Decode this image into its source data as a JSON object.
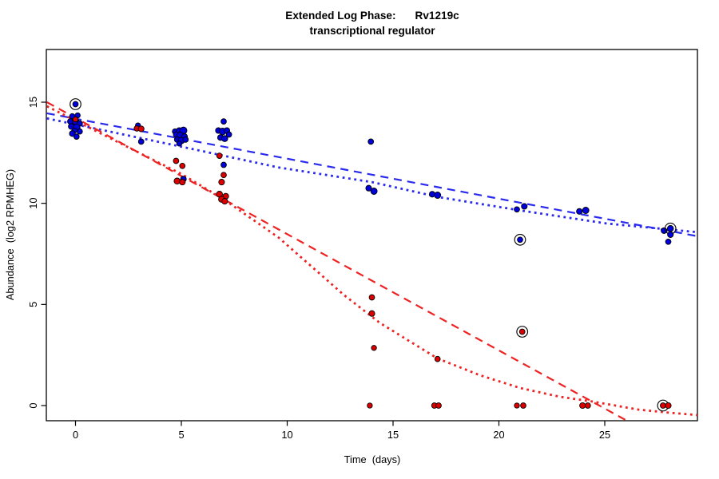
{
  "figure": {
    "title_line1_label": "Extended Log Phase:",
    "title_line1_gene": "Rv1219c",
    "title_line2": "transcriptional regulator",
    "x_axis_label": "Time  (days)",
    "y_axis_label": "Abundance  (log2 RPMHEG)"
  },
  "chart_data": {
    "type": "scatter",
    "title": "Extended Log Phase: Rv1219c transcriptional regulator",
    "xlabel": "Time (days)",
    "ylabel": "Abundance (log2 RPMHEG)",
    "xlim": [
      -1.35,
      29.4
    ],
    "ylim": [
      -0.78,
      17.6
    ],
    "x_ticks": [
      0,
      5,
      10,
      15,
      20,
      25
    ],
    "y_ticks": [
      0,
      5,
      10,
      15
    ],
    "grid": false,
    "legend": "none",
    "colors": {
      "blue_points": "#0000DD",
      "red_points": "#DD0000",
      "blue_line": "#2A2AEE",
      "red_line": "#EE2222",
      "point_edge": "#000000",
      "circle_marker": "#111111"
    },
    "point_format": "[day, value, radius_px, circled_flag]",
    "series": [
      {
        "name": "blue-condition",
        "color_key": "blue_points",
        "points": [
          [
            0.0,
            14.9,
            3.4,
            1
          ],
          [
            -0.15,
            14.3,
            3.4,
            0
          ],
          [
            0.1,
            14.35,
            3.2,
            0
          ],
          [
            -0.25,
            14.05,
            3.4,
            0
          ],
          [
            0.0,
            14.05,
            4.2,
            0
          ],
          [
            0.2,
            13.95,
            3.4,
            0
          ],
          [
            -0.2,
            13.8,
            3.6,
            0
          ],
          [
            0.05,
            13.75,
            4.4,
            0
          ],
          [
            -0.05,
            13.6,
            3.2,
            0
          ],
          [
            0.2,
            13.55,
            3.4,
            0
          ],
          [
            -0.15,
            13.45,
            3.6,
            0
          ],
          [
            0.05,
            13.3,
            3.4,
            0
          ],
          [
            2.95,
            13.85,
            3.2,
            0
          ],
          [
            3.1,
            13.05,
            3.4,
            0
          ],
          [
            4.7,
            13.55,
            3.4,
            0
          ],
          [
            4.9,
            13.6,
            3.6,
            0
          ],
          [
            5.1,
            13.6,
            4.4,
            0
          ],
          [
            4.75,
            13.4,
            3.4,
            0
          ],
          [
            4.95,
            13.35,
            4.2,
            0
          ],
          [
            5.15,
            13.3,
            3.6,
            0
          ],
          [
            4.8,
            13.15,
            3.4,
            0
          ],
          [
            5.0,
            13.1,
            4.0,
            0
          ],
          [
            5.2,
            13.15,
            3.4,
            0
          ],
          [
            4.9,
            12.95,
            3.2,
            0
          ],
          [
            5.1,
            11.2,
            3.6,
            0
          ],
          [
            7.0,
            14.05,
            3.4,
            0
          ],
          [
            6.75,
            13.6,
            3.6,
            0
          ],
          [
            6.95,
            13.55,
            4.2,
            0
          ],
          [
            7.15,
            13.6,
            3.6,
            0
          ],
          [
            7.25,
            13.4,
            3.4,
            0
          ],
          [
            6.85,
            13.25,
            3.6,
            0
          ],
          [
            7.05,
            13.2,
            3.8,
            0
          ],
          [
            7.0,
            11.9,
            3.4,
            0
          ],
          [
            13.95,
            13.05,
            3.4,
            0
          ],
          [
            13.85,
            10.75,
            3.6,
            0
          ],
          [
            14.1,
            10.6,
            4.0,
            0
          ],
          [
            16.85,
            10.45,
            3.6,
            0
          ],
          [
            17.1,
            10.4,
            4.0,
            0
          ],
          [
            20.85,
            9.7,
            3.4,
            0
          ],
          [
            21.2,
            9.85,
            3.6,
            0
          ],
          [
            21.0,
            8.2,
            3.4,
            1
          ],
          [
            23.8,
            9.6,
            3.6,
            0
          ],
          [
            24.1,
            9.65,
            4.0,
            0
          ],
          [
            27.8,
            8.65,
            3.6,
            0
          ],
          [
            28.1,
            8.75,
            3.8,
            1
          ],
          [
            28.1,
            8.45,
            3.6,
            0
          ],
          [
            28.0,
            8.1,
            3.4,
            0
          ]
        ]
      },
      {
        "name": "red-condition",
        "color_key": "red_points",
        "points": [
          [
            0.0,
            14.15,
            3.2,
            0
          ],
          [
            2.9,
            13.7,
            3.4,
            0
          ],
          [
            3.1,
            13.68,
            3.6,
            0
          ],
          [
            4.75,
            12.1,
            3.4,
            0
          ],
          [
            5.05,
            11.85,
            3.4,
            0
          ],
          [
            4.8,
            11.1,
            3.8,
            0
          ],
          [
            5.05,
            11.05,
            3.6,
            0
          ],
          [
            6.8,
            12.35,
            3.4,
            0
          ],
          [
            7.0,
            11.4,
            3.4,
            0
          ],
          [
            6.9,
            11.05,
            3.6,
            0
          ],
          [
            6.8,
            10.45,
            3.8,
            0
          ],
          [
            7.1,
            10.35,
            3.6,
            0
          ],
          [
            6.9,
            10.2,
            3.8,
            0
          ],
          [
            7.05,
            10.1,
            3.6,
            0
          ],
          [
            14.0,
            5.35,
            3.4,
            0
          ],
          [
            14.0,
            4.55,
            3.6,
            0
          ],
          [
            14.1,
            2.85,
            3.2,
            0
          ],
          [
            13.9,
            0.0,
            3.2,
            0
          ],
          [
            17.1,
            2.3,
            3.4,
            0
          ],
          [
            16.95,
            0.0,
            3.4,
            0
          ],
          [
            17.15,
            0.0,
            3.4,
            0
          ],
          [
            21.1,
            3.65,
            3.4,
            1
          ],
          [
            20.85,
            0.0,
            3.2,
            0
          ],
          [
            21.15,
            0.0,
            3.4,
            0
          ],
          [
            23.95,
            0.0,
            3.6,
            0
          ],
          [
            24.2,
            0.0,
            3.4,
            0
          ],
          [
            27.75,
            0.0,
            3.4,
            1
          ],
          [
            28.0,
            0.0,
            3.6,
            0
          ]
        ]
      }
    ],
    "trend_lines": [
      {
        "name": "blue-dashed-linear-fit",
        "style": "dashed",
        "color_key": "blue_line",
        "points": [
          [
            -1.35,
            14.45
          ],
          [
            29.4,
            8.37
          ]
        ]
      },
      {
        "name": "blue-dotted-decay-fit",
        "style": "dotted",
        "color_key": "blue_line",
        "points": [
          [
            -1.35,
            14.2
          ],
          [
            5.0,
            12.8
          ],
          [
            9.6,
            11.77
          ],
          [
            14.0,
            11.05
          ],
          [
            17.2,
            10.3
          ],
          [
            21.3,
            9.6
          ],
          [
            25.1,
            9.0
          ],
          [
            29.4,
            8.57
          ]
        ]
      },
      {
        "name": "red-dashed-linear-fit",
        "style": "dashed",
        "color_key": "red_line",
        "points": [
          [
            -1.35,
            15.0
          ],
          [
            26.1,
            -0.78
          ]
        ]
      },
      {
        "name": "red-dotted-decay-fit",
        "style": "dotted",
        "color_key": "red_line",
        "points": [
          [
            -1.35,
            14.8
          ],
          [
            3.0,
            12.5
          ],
          [
            5.0,
            11.45
          ],
          [
            7.0,
            10.2
          ],
          [
            9.6,
            8.3
          ],
          [
            12.7,
            5.45
          ],
          [
            14.4,
            4.07
          ],
          [
            17.1,
            2.33
          ],
          [
            19.1,
            1.5
          ],
          [
            21.0,
            0.87
          ],
          [
            22.9,
            0.43
          ],
          [
            24.4,
            0.2
          ],
          [
            26.6,
            -0.2
          ],
          [
            28.1,
            -0.36
          ],
          [
            29.4,
            -0.47
          ]
        ]
      }
    ]
  }
}
